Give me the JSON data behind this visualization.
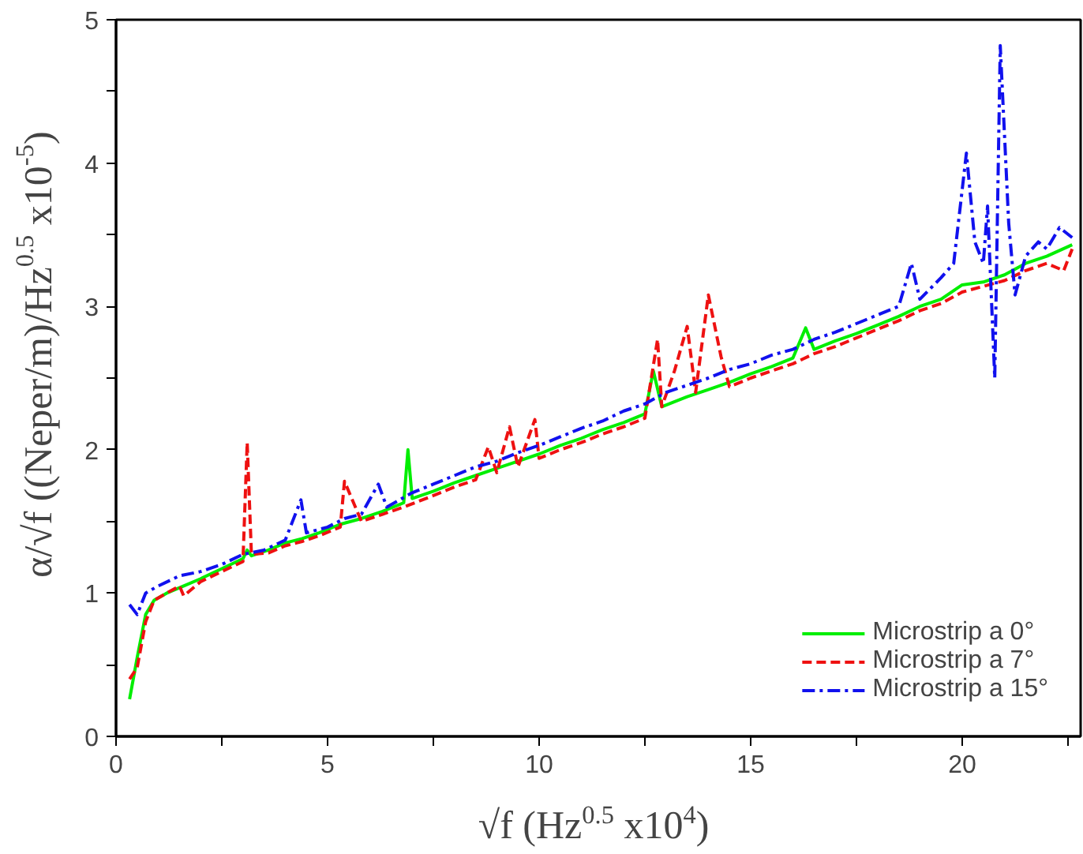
{
  "chart_data": {
    "type": "line",
    "xlabel": "√f (Hz$^{0.5}$ x10$^{4}$)",
    "ylabel": "α/√f ((Neper/m)/Hz$^{0.5}$ x10$^{-5}$)",
    "xlim": [
      0,
      22.8
    ],
    "ylim": [
      0,
      5
    ],
    "xticks": [
      0,
      {
        "value": 2.5,
        "label": null
      },
      5,
      {
        "value": 7.5,
        "label": null
      },
      10,
      {
        "value": 12.5,
        "label": null
      },
      15,
      {
        "value": 17.5,
        "label": null
      },
      20,
      {
        "value": 22.5,
        "label": null
      }
    ],
    "yticks": [
      0,
      {
        "value": 0.5,
        "label": null
      },
      1,
      {
        "value": 1.5,
        "label": null
      },
      2,
      {
        "value": 2.5,
        "label": null
      },
      3,
      {
        "value": 3.5,
        "label": null
      },
      4,
      {
        "value": 4.5,
        "label": null
      },
      5
    ],
    "grid": false,
    "legend": "bottom right",
    "series": [
      {
        "name": "Microstrip a 0°",
        "color": "#00ee00",
        "line_style": "solid",
        "x": [
          0.32,
          0.5,
          0.7,
          0.9,
          1.2,
          1.6,
          2.0,
          2.5,
          3.0,
          3.1,
          3.2,
          3.6,
          4.0,
          4.4,
          4.8,
          5.3,
          5.8,
          6.3,
          6.8,
          6.9,
          7.0,
          7.5,
          8.0,
          8.5,
          9.0,
          9.5,
          10.0,
          10.5,
          11.0,
          11.5,
          12.0,
          12.5,
          12.7,
          12.9,
          13.5,
          14.0,
          14.5,
          15.0,
          15.5,
          16.0,
          16.3,
          16.5,
          17.0,
          17.5,
          18.0,
          18.5,
          19.0,
          19.5,
          20.0,
          20.5,
          21.0,
          21.5,
          22.0,
          22.6
        ],
        "values": [
          0.26,
          0.55,
          0.85,
          0.95,
          1.0,
          1.05,
          1.1,
          1.17,
          1.24,
          1.3,
          1.26,
          1.3,
          1.35,
          1.38,
          1.42,
          1.48,
          1.52,
          1.57,
          1.63,
          2.0,
          1.66,
          1.71,
          1.77,
          1.82,
          1.87,
          1.92,
          1.97,
          2.03,
          2.08,
          2.14,
          2.19,
          2.25,
          2.55,
          2.3,
          2.37,
          2.42,
          2.47,
          2.53,
          2.58,
          2.64,
          2.85,
          2.7,
          2.76,
          2.81,
          2.87,
          2.93,
          3.0,
          3.05,
          3.15,
          3.17,
          3.22,
          3.3,
          3.35,
          3.43
        ]
      },
      {
        "name": "Microstrip a 7°",
        "color": "#ee1111",
        "line_style": "dashed",
        "x": [
          0.32,
          0.5,
          0.7,
          0.9,
          1.2,
          1.5,
          1.6,
          2.0,
          2.5,
          3.0,
          3.1,
          3.2,
          3.6,
          4.0,
          4.4,
          4.8,
          5.3,
          5.4,
          5.8,
          6.3,
          6.8,
          7.5,
          8.0,
          8.5,
          8.8,
          9.0,
          9.3,
          9.5,
          9.9,
          10.0,
          10.5,
          11.0,
          11.5,
          12.0,
          12.5,
          12.8,
          12.9,
          13.2,
          13.5,
          13.7,
          14.0,
          14.3,
          14.5,
          15.0,
          15.5,
          16.0,
          16.5,
          17.0,
          17.5,
          18.0,
          18.5,
          19.0,
          19.5,
          20.0,
          20.5,
          21.0,
          21.5,
          22.0,
          22.4,
          22.6
        ],
        "values": [
          0.4,
          0.48,
          0.8,
          0.95,
          1.0,
          1.05,
          0.98,
          1.08,
          1.15,
          1.22,
          2.05,
          1.27,
          1.28,
          1.33,
          1.36,
          1.4,
          1.46,
          1.78,
          1.5,
          1.55,
          1.6,
          1.68,
          1.74,
          1.79,
          2.02,
          1.84,
          2.16,
          1.88,
          2.21,
          1.94,
          2.0,
          2.05,
          2.11,
          2.16,
          2.22,
          2.77,
          2.3,
          2.55,
          2.86,
          2.4,
          3.08,
          2.65,
          2.44,
          2.5,
          2.55,
          2.6,
          2.67,
          2.72,
          2.78,
          2.84,
          2.9,
          2.97,
          3.02,
          3.1,
          3.14,
          3.18,
          3.25,
          3.3,
          3.25,
          3.4
        ]
      },
      {
        "name": "Microstrip a 15°",
        "color": "#1111ee",
        "line_style": "dashdot",
        "x": [
          0.32,
          0.5,
          0.7,
          1.0,
          1.5,
          2.0,
          2.5,
          3.0,
          3.5,
          4.0,
          4.37,
          4.5,
          5.0,
          5.4,
          5.8,
          6.2,
          6.4,
          7.0,
          7.5,
          8.0,
          8.5,
          9.0,
          9.5,
          10.0,
          10.5,
          11.0,
          11.5,
          12.0,
          12.5,
          13.0,
          13.5,
          14.0,
          14.5,
          15.0,
          15.5,
          16.0,
          16.5,
          17.0,
          17.5,
          18.0,
          18.5,
          18.8,
          19.0,
          19.5,
          19.8,
          20.1,
          20.3,
          20.5,
          20.6,
          20.77,
          20.9,
          21.1,
          21.25,
          21.5,
          21.8,
          22.0,
          22.3,
          22.6
        ],
        "values": [
          0.92,
          0.85,
          1.0,
          1.05,
          1.12,
          1.15,
          1.2,
          1.27,
          1.3,
          1.37,
          1.65,
          1.42,
          1.46,
          1.52,
          1.55,
          1.76,
          1.6,
          1.7,
          1.76,
          1.82,
          1.88,
          1.92,
          1.98,
          2.03,
          2.09,
          2.15,
          2.2,
          2.27,
          2.32,
          2.4,
          2.45,
          2.5,
          2.56,
          2.6,
          2.66,
          2.7,
          2.77,
          2.82,
          2.88,
          2.94,
          3.0,
          3.3,
          3.05,
          3.2,
          3.3,
          4.07,
          3.45,
          3.3,
          3.7,
          2.5,
          4.82,
          3.58,
          3.08,
          3.35,
          3.45,
          3.4,
          3.55,
          3.48
        ]
      }
    ]
  }
}
